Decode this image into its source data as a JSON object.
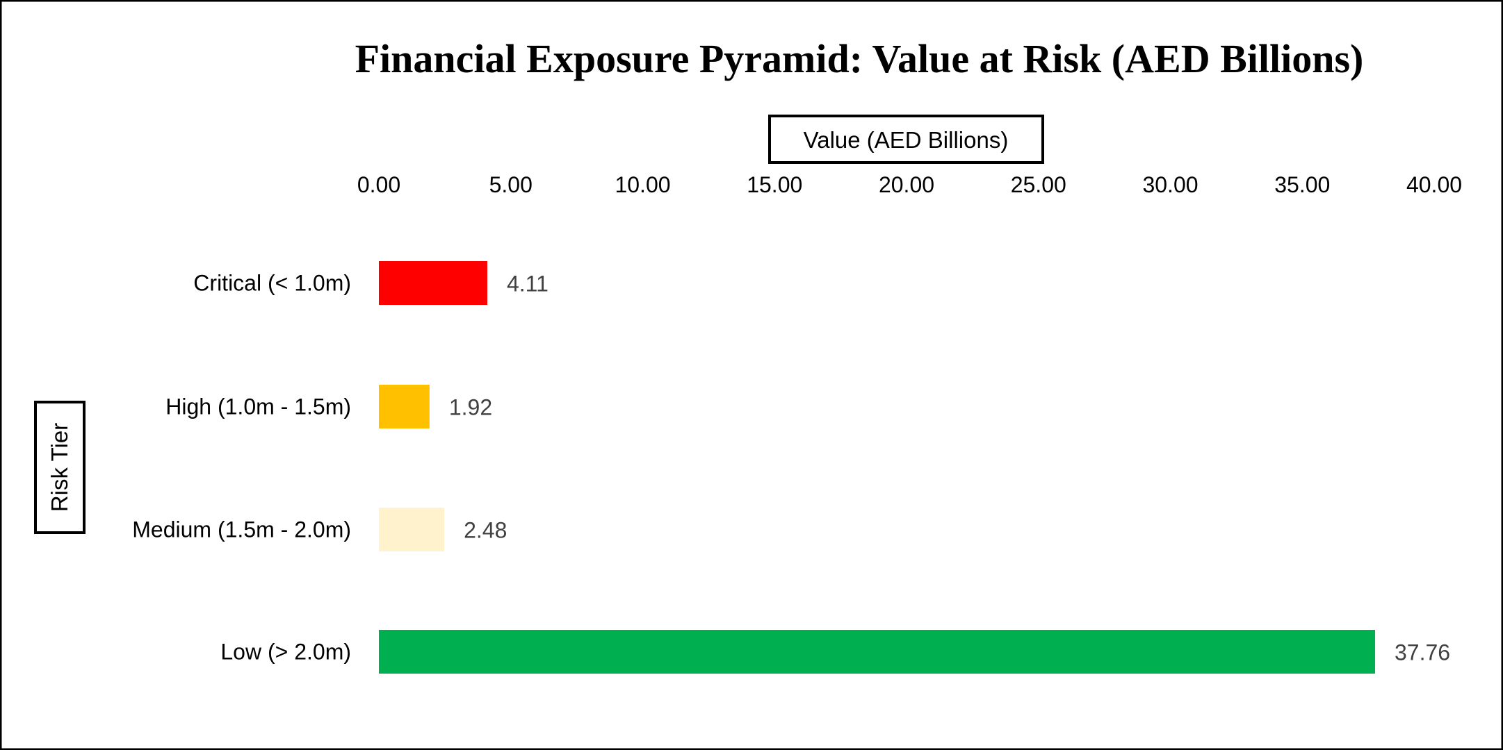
{
  "chart_data": {
    "type": "bar",
    "orientation": "horizontal",
    "title": "Financial Exposure Pyramid: Value at Risk (AED Billions)",
    "xlabel": "Value (AED Billions)",
    "ylabel": "Risk Tier",
    "xlim": [
      0,
      40
    ],
    "x_axis_position": "top",
    "xticks": [
      "0.00",
      "5.00",
      "10.00",
      "15.00",
      "20.00",
      "25.00",
      "30.00",
      "35.00",
      "40.00"
    ],
    "tick_values": [
      0,
      5,
      10,
      15,
      20,
      25,
      30,
      35,
      40
    ],
    "grid": false,
    "categories": [
      "Critical (< 1.0m)",
      "High (1.0m - 1.5m)",
      "Medium (1.5m - 2.0m)",
      "Low (> 2.0m)"
    ],
    "values": [
      4.11,
      1.92,
      2.48,
      37.76
    ],
    "data_labels": [
      "4.11",
      "1.92",
      "2.48",
      "37.76"
    ],
    "colors": [
      "#FF0000",
      "#FFC000",
      "#FFF2CC",
      "#00B050"
    ]
  }
}
